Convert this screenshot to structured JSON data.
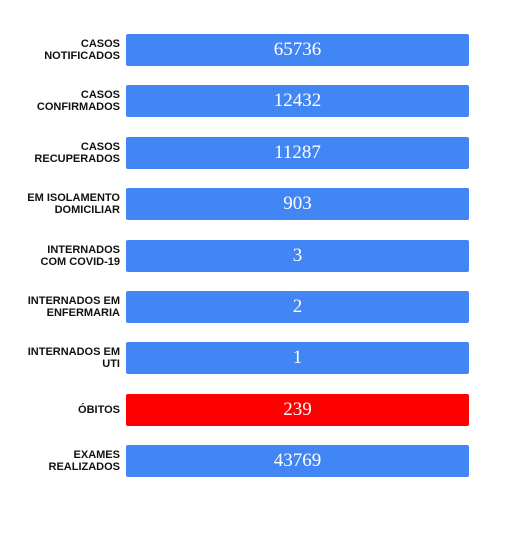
{
  "items": [
    {
      "label": [
        "CASOS",
        "NOTIFICADOS"
      ],
      "value": "65736",
      "color": "#4285f4"
    },
    {
      "label": [
        "CASOS",
        "CONFIRMADOS"
      ],
      "value": "12432",
      "color": "#4285f4"
    },
    {
      "label": [
        "CASOS",
        "RECUPERADOS"
      ],
      "value": "11287",
      "color": "#4285f4"
    },
    {
      "label": [
        "EM ISOLAMENTO",
        "DOMICILIAR"
      ],
      "value": "903",
      "color": "#4285f4"
    },
    {
      "label": [
        "INTERNADOS",
        "COM COVID-19"
      ],
      "value": "3",
      "color": "#4285f4"
    },
    {
      "label": [
        "INTERNADOS EM",
        "ENFERMARIA"
      ],
      "value": "2",
      "color": "#4285f4"
    },
    {
      "label": [
        "INTERNADOS EM",
        "UTI"
      ],
      "value": "1",
      "color": "#4285f4"
    },
    {
      "label": [
        "ÓBITOS"
      ],
      "value": "239",
      "color": "#ff0000"
    },
    {
      "label": [
        "EXAMES",
        "REALIZADOS"
      ],
      "value": "43769",
      "color": "#4285f4"
    }
  ]
}
